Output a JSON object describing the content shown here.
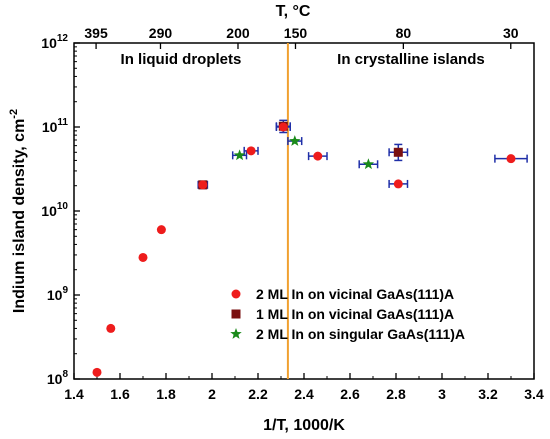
{
  "chart_data": {
    "type": "scatter",
    "xlabel": "1/T, 1000/K",
    "ylabel": "Indium island density, cm",
    "ylabel_superscript": "-2",
    "top_axis_label": "T, °C",
    "xlim": [
      1.4,
      3.4
    ],
    "ylim_log10": [
      8,
      12
    ],
    "y_scale": "log",
    "x_ticks": [
      1.4,
      1.6,
      1.8,
      2,
      2.2,
      2.4,
      2.6,
      2.8,
      3,
      3.2,
      3.4
    ],
    "x_tick_labels": [
      "1.4",
      "1.6",
      "1.8",
      "2",
      "2.2",
      "2.4",
      "2.6",
      "2.8",
      "3",
      "3.2",
      "3.4"
    ],
    "y_ticks": [
      {
        "exp": 8,
        "base": "10",
        "sup": "8"
      },
      {
        "exp": 9,
        "base": "10",
        "sup": "9"
      },
      {
        "exp": 10,
        "base": "10",
        "sup": "10"
      },
      {
        "exp": 11,
        "base": "10",
        "sup": "11"
      },
      {
        "exp": 12,
        "base": "10",
        "sup": "12"
      }
    ],
    "top_ticks": [
      {
        "label": "395",
        "x": 1.496
      },
      {
        "label": "290",
        "x": 1.776
      },
      {
        "label": "200",
        "x": 2.113
      },
      {
        "label": "150",
        "x": 2.363
      },
      {
        "label": "80",
        "x": 2.832
      },
      {
        "label": "30",
        "x": 3.299
      }
    ],
    "vertical_line": {
      "x": 2.33,
      "color": "#f0a030"
    },
    "region_labels": [
      {
        "text": "In liquid droplets",
        "side": "left"
      },
      {
        "text": "In crystalline islands",
        "side": "right"
      }
    ],
    "series": [
      {
        "name": "2 ML In on vicinal GaAs(111)A",
        "marker": "circle",
        "color": "#ee1c1c",
        "points": [
          {
            "x": 1.5,
            "y": 120000000.0
          },
          {
            "x": 1.56,
            "y": 400000000.0
          },
          {
            "x": 1.7,
            "y": 2800000000.0
          },
          {
            "x": 1.78,
            "y": 6000000000.0
          },
          {
            "x": 1.96,
            "y": 20500000000.0,
            "xerr": 0.02,
            "yerr": [
              18500000000.0,
              22500000000.0
            ]
          },
          {
            "x": 2.17,
            "y": 52000000000.0,
            "xerr": 0.03
          },
          {
            "x": 2.31,
            "y": 100000000000.0,
            "xerr": 0.03
          },
          {
            "x": 2.46,
            "y": 45000000000.0,
            "xerr": 0.04
          },
          {
            "x": 2.81,
            "y": 21000000000.0,
            "xerr": 0.04
          },
          {
            "x": 3.3,
            "y": 42000000000.0,
            "xerr": 0.07
          }
        ]
      },
      {
        "name": "1 ML In on vicinal GaAs(111)A",
        "marker": "square",
        "color": "#7a1010",
        "points": [
          {
            "x": 1.96,
            "y": 20500000000.0
          },
          {
            "x": 2.31,
            "y": 102000000000.0,
            "xerr": 0.03,
            "yerr": [
              86000000000.0,
              120000000000.0
            ]
          },
          {
            "x": 2.81,
            "y": 50000000000.0,
            "xerr": 0.04,
            "yerr": [
              40000000000.0,
              62000000000.0
            ]
          }
        ]
      },
      {
        "name": "2 ML In on singular GaAs(111)A",
        "marker": "star",
        "color": "#1a8a1a",
        "points": [
          {
            "x": 2.12,
            "y": 46000000000.0,
            "xerr": 0.03
          },
          {
            "x": 2.36,
            "y": 68000000000.0,
            "xerr": 0.03
          },
          {
            "x": 2.68,
            "y": 36000000000.0,
            "xerr": 0.04
          }
        ]
      }
    ],
    "errorbar_color": "#1f2fa8",
    "legend_position": "bottom-right"
  }
}
